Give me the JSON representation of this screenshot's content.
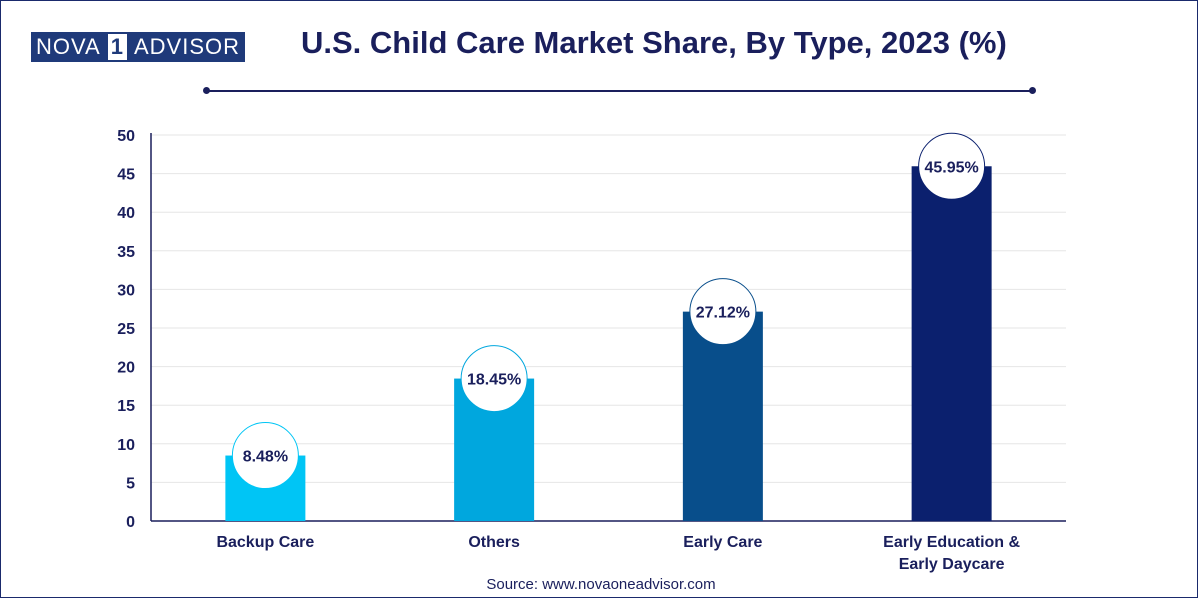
{
  "logo": {
    "part1": "NOVA",
    "part2": "1",
    "part3": "ADVISOR"
  },
  "header": {
    "title": "U.S. Child Care Market Share, By Type, 2023 (%)"
  },
  "footer": {
    "source": "Source: www.novaoneadvisor.com"
  },
  "colors": {
    "text": "#1a1f5c",
    "grid": "#e6e6e6",
    "axis": "#1a1f5c"
  },
  "chart_data": {
    "type": "bar",
    "title": "U.S. Child Care Market Share, By Type, 2023 (%)",
    "xlabel": "",
    "ylabel": "",
    "ylim": [
      0,
      50
    ],
    "yticks": [
      0,
      5,
      10,
      15,
      20,
      25,
      30,
      35,
      40,
      45,
      50
    ],
    "categories": [
      "Backup Care",
      "Others",
      "Early Care",
      "Early Education & Early Daycare"
    ],
    "category_lines": [
      [
        "Backup Care"
      ],
      [
        "Others"
      ],
      [
        "Early Care"
      ],
      [
        "Early Education &",
        "Early Daycare"
      ]
    ],
    "values": [
      8.48,
      18.45,
      27.12,
      45.95
    ],
    "labels": [
      "8.48%",
      "18.45%",
      "27.12%",
      "45.95%"
    ],
    "bar_colors": [
      "#00c5f5",
      "#00a7de",
      "#084e8b",
      "#0b206e"
    ],
    "grid": true,
    "legend": "none"
  }
}
